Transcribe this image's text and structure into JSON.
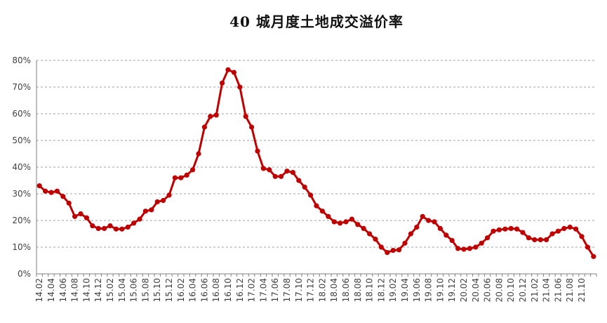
{
  "chart_data": {
    "type": "line",
    "title": "40 城月度土地成交溢价率",
    "xlabel": "",
    "ylabel": "",
    "ylim": [
      0,
      80
    ],
    "yticks": [
      "0%",
      "10%",
      "20%",
      "30%",
      "40%",
      "50%",
      "60%",
      "70%",
      "80%"
    ],
    "grid": true,
    "legend": "none",
    "color": "#c00000",
    "x": [
      "14.02",
      "14.03",
      "14.04",
      "14.05",
      "14.06",
      "14.07",
      "14.08",
      "14.09",
      "14.10",
      "14.11",
      "14.12",
      "15.01",
      "15.02",
      "15.03",
      "15.04",
      "15.05",
      "15.06",
      "15.07",
      "15.08",
      "15.09",
      "15.10",
      "15.11",
      "15.12",
      "16.01",
      "16.02",
      "16.03",
      "16.04",
      "16.05",
      "16.06",
      "16.07",
      "16.08",
      "16.09",
      "16.10",
      "16.11",
      "16.12",
      "17.01",
      "17.02",
      "17.03",
      "17.04",
      "17.05",
      "17.06",
      "17.07",
      "17.08",
      "17.09",
      "17.10",
      "17.11",
      "17.12",
      "18.01",
      "18.02",
      "18.03",
      "18.04",
      "18.05",
      "18.06",
      "18.07",
      "18.08",
      "18.09",
      "18.10",
      "18.11",
      "18.12",
      "19.01",
      "19.02",
      "19.03",
      "19.04",
      "19.05",
      "19.06",
      "19.07",
      "19.08",
      "19.09",
      "19.10",
      "19.11",
      "19.12",
      "20.01",
      "20.02",
      "20.03",
      "20.04",
      "20.05",
      "20.06",
      "20.07",
      "20.08",
      "20.09",
      "20.10",
      "20.11",
      "20.12",
      "21.01",
      "21.02",
      "21.03",
      "21.04",
      "21.05",
      "21.06",
      "21.07",
      "21.08",
      "21.09",
      "21.10",
      "21.11",
      "21.12"
    ],
    "xtick_labels": [
      "14.02",
      "14.04",
      "14.06",
      "14.08",
      "14.10",
      "14.12",
      "15.02",
      "15.04",
      "15.06",
      "15.08",
      "15.10",
      "15.12",
      "16.02",
      "16.04",
      "16.06",
      "16.08",
      "16.10",
      "16.12",
      "17.02",
      "17.04",
      "17.06",
      "17.08",
      "17.10",
      "17.12",
      "18.02",
      "18.04",
      "18.06",
      "18.08",
      "18.10",
      "18.12",
      "19.02",
      "19.04",
      "19.06",
      "19.08",
      "19.10",
      "19.12",
      "20.02",
      "20.04",
      "20.06",
      "20.08",
      "20.10",
      "20.12",
      "21.02",
      "21.04",
      "21.06",
      "21.08",
      "21.10"
    ],
    "series": [
      {
        "values": [
          33.0,
          31.0,
          30.5,
          31.0,
          29.0,
          26.5,
          21.5,
          22.5,
          21.0,
          18.0,
          17.0,
          17.0,
          18.0,
          16.8,
          16.8,
          17.5,
          19.0,
          20.5,
          23.5,
          24.0,
          27.0,
          27.5,
          29.5,
          36.0,
          36.0,
          37.0,
          39.0,
          45.0,
          55.0,
          59.0,
          59.5,
          71.5,
          76.5,
          75.5,
          70.0,
          59.0,
          55.0,
          46.0,
          39.5,
          39.0,
          36.5,
          36.5,
          38.5,
          38.0,
          35.0,
          32.5,
          29.5,
          25.5,
          23.5,
          21.5,
          19.5,
          19.0,
          19.5,
          20.5,
          18.5,
          17.0,
          15.0,
          13.0,
          10.0,
          8.0,
          8.8,
          9.0,
          11.5,
          15.0,
          17.5,
          21.5,
          20.0,
          19.5,
          17.0,
          14.5,
          12.5,
          9.5,
          9.2,
          9.5,
          10.0,
          11.5,
          13.5,
          16.0,
          16.5,
          16.8,
          17.0,
          16.8,
          15.5,
          13.5,
          12.8,
          12.8,
          12.8,
          15.0,
          16.0,
          17.0,
          17.5,
          16.8,
          14.0,
          10.0,
          6.5
        ]
      }
    ]
  }
}
